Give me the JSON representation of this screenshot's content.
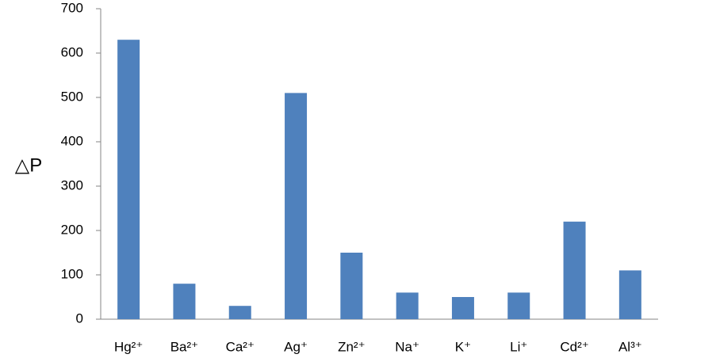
{
  "chart_data": {
    "type": "bar",
    "y_label": "△P",
    "categories": [
      "Hg²⁺",
      "Ba²⁺",
      "Ca²⁺",
      "Ag⁺",
      "Zn²⁺",
      "Na⁺",
      "K⁺",
      "Li⁺",
      "Cd²⁺",
      "Al³⁺"
    ],
    "values": [
      630,
      80,
      30,
      510,
      150,
      60,
      50,
      60,
      220,
      110
    ],
    "color": "#4f81bd",
    "ylim": [
      0,
      700
    ],
    "yticks": [
      0,
      100,
      200,
      300,
      400,
      500,
      600,
      700
    ],
    "grid": false
  }
}
